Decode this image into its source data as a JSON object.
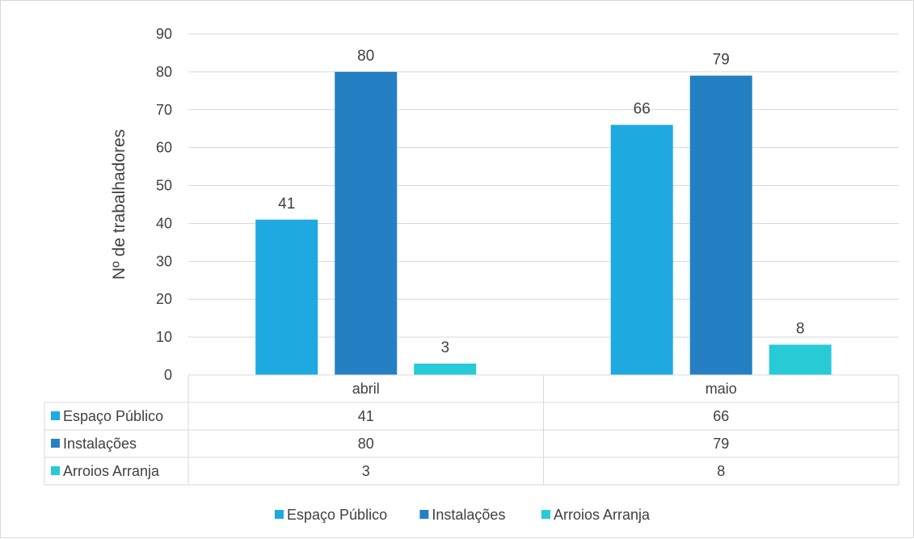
{
  "chart_data": {
    "type": "bar",
    "title": "",
    "ylabel": "Nº de trabalhadores",
    "xlabel": "",
    "ylim": [
      0,
      90
    ],
    "yticks": [
      0,
      10,
      20,
      30,
      40,
      50,
      60,
      70,
      80,
      90
    ],
    "categories": [
      "abril",
      "maio"
    ],
    "series": [
      {
        "name": "Espaço Público",
        "values": [
          41,
          66
        ],
        "color": "#1ea9e1"
      },
      {
        "name": "Instalações",
        "values": [
          80,
          79
        ],
        "color": "#2580c3"
      },
      {
        "name": "Arroios Arranja",
        "values": [
          3,
          8
        ],
        "color": "#26cbd6"
      }
    ],
    "grid": true,
    "legend": "bottom",
    "data_table": true
  }
}
